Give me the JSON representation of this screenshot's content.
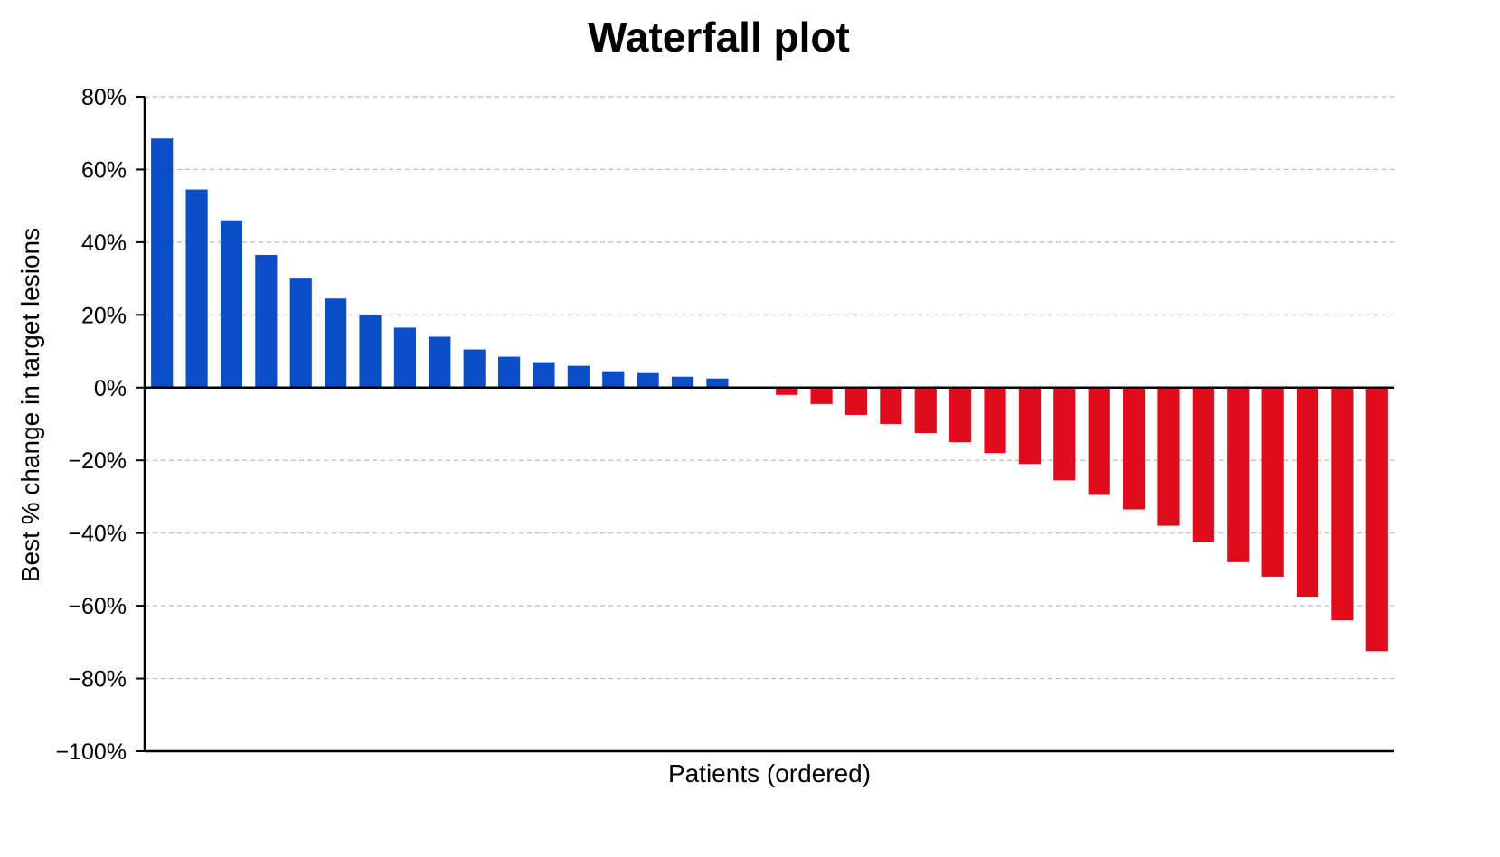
{
  "chart_data": {
    "type": "bar",
    "title": "Waterfall plot",
    "xlabel": "Patients (ordered)",
    "ylabel": "Best % change in target lesions",
    "ylim": [
      -100,
      80
    ],
    "yticks": [
      80,
      60,
      40,
      20,
      0,
      -20,
      -40,
      -60,
      -80,
      -100
    ],
    "ytick_labels": [
      "80%",
      "60%",
      "40%",
      "20%",
      "0%",
      "−20%",
      "−40%",
      "−60%",
      "−80%",
      "−100%"
    ],
    "grid": "horizontal-dashed",
    "colors": {
      "positive": "#0a4fc8",
      "negative": "#e00c1c",
      "grid": "#bbbbbb",
      "axis": "#000000"
    },
    "values": [
      68.5,
      54.5,
      46,
      36.5,
      30,
      24.5,
      20,
      16.5,
      14,
      10.5,
      8.5,
      7,
      6,
      4.5,
      4,
      3,
      2.5,
      0,
      -2,
      -4.5,
      -7.5,
      -10,
      -12.5,
      -15,
      -18,
      -21,
      -25.5,
      -29.5,
      -33.5,
      -38,
      -42.5,
      -48,
      -52,
      -57.5,
      -64,
      -72.5
    ]
  }
}
